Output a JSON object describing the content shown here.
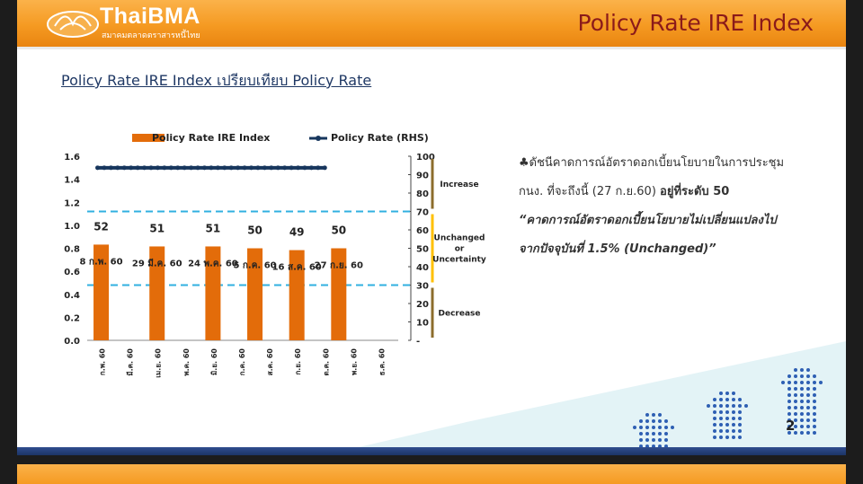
{
  "header": {
    "logo_text": "ThaiBMA",
    "logo_subtext": "สมาคมตลาดตราสารหนี้ไทย",
    "page_title": "Policy Rate IRE Index"
  },
  "subtitle": "Policy Rate IRE Index เปรียบเทียบ Policy Rate",
  "colors": {
    "header_orange": "#f59a22",
    "title_red": "#8b1a1a",
    "bar_orange": "#e36c0a",
    "policy_line": "#17365d",
    "threshold_line": "#31b0e0",
    "increase_bracket": "#8c6d2c",
    "unchanged_bracket": "#ffc000",
    "footer_blue": "#1c3566"
  },
  "chart_data": {
    "type": "bar",
    "legend": [
      "Policy Rate IRE Index",
      "Policy Rate (RHS)"
    ],
    "legend_position": "top",
    "x_labels": [
      "ก.พ. 60",
      "มี.ค. 60",
      "เม.ย. 60",
      "พ.ค. 60",
      "มิ.ย. 60",
      "ก.ค. 60",
      "ส.ค. 60",
      "ก.ย. 60",
      "ต.ค. 60",
      "พ.ย. 60",
      "ธ.ค. 60"
    ],
    "bars": [
      {
        "x_index": 0,
        "value": 52,
        "label": "52",
        "date_label": "8 ก.พ. 60"
      },
      {
        "x_index": 2,
        "value": 51,
        "label": "51",
        "date_label": "29 มี.ค. 60"
      },
      {
        "x_index": 4,
        "value": 51,
        "label": "51",
        "date_label": "24 พ.ค. 60"
      },
      {
        "x_index": 5.5,
        "value": 50,
        "label": "50",
        "date_label": "5 ก.ค. 60"
      },
      {
        "x_index": 7,
        "value": 49,
        "label": "49",
        "date_label": "16 ส.ค. 60"
      },
      {
        "x_index": 8.5,
        "value": 50,
        "label": "50",
        "date_label": "27 ก.ย. 60"
      }
    ],
    "policy_rate": {
      "value": 1.5,
      "x_start": 0,
      "x_end": 8.0
    },
    "y_left": {
      "min": 0,
      "max": 1.6,
      "ticks": [
        "0.0",
        "0.2",
        "0.4",
        "0.6",
        "0.8",
        "1.0",
        "1.2",
        "1.4",
        "1.6"
      ]
    },
    "y_right": {
      "min": 0,
      "max": 100,
      "ticks": [
        "-",
        "10",
        "20",
        "30",
        "40",
        "50",
        "60",
        "70",
        "80",
        "90",
        "100"
      ]
    },
    "thresholds": [
      70,
      30
    ],
    "zones": [
      {
        "label": "Increase",
        "from": 70,
        "to": 100
      },
      {
        "label": "Unchanged or Uncertainty",
        "lines": [
          "Unchanged",
          "or",
          "Uncertainty"
        ],
        "from": 30,
        "to": 70
      },
      {
        "label": "Decrease",
        "from": 0,
        "to": 30
      }
    ]
  },
  "notes": {
    "bullet_symbol": "♣",
    "bullet_prefix": "ดัชนีคาดการณ์อัตราดอกเบี้ยนโยบายในการประชุม",
    "bullet_line2": "กนง. ที่จะถึงนี้ (27 ก.ย.60) ",
    "bullet_bold": "อยู่ที่ระดับ 50",
    "quote_line1": "“คาดการณ์อัตราดอกเบี้ยนโยบายไม่เปลี่ยนแปลงไป",
    "quote_line2": "จากปัจจุบันที่ 1.5% (Unchanged)”"
  },
  "page_number": "2"
}
